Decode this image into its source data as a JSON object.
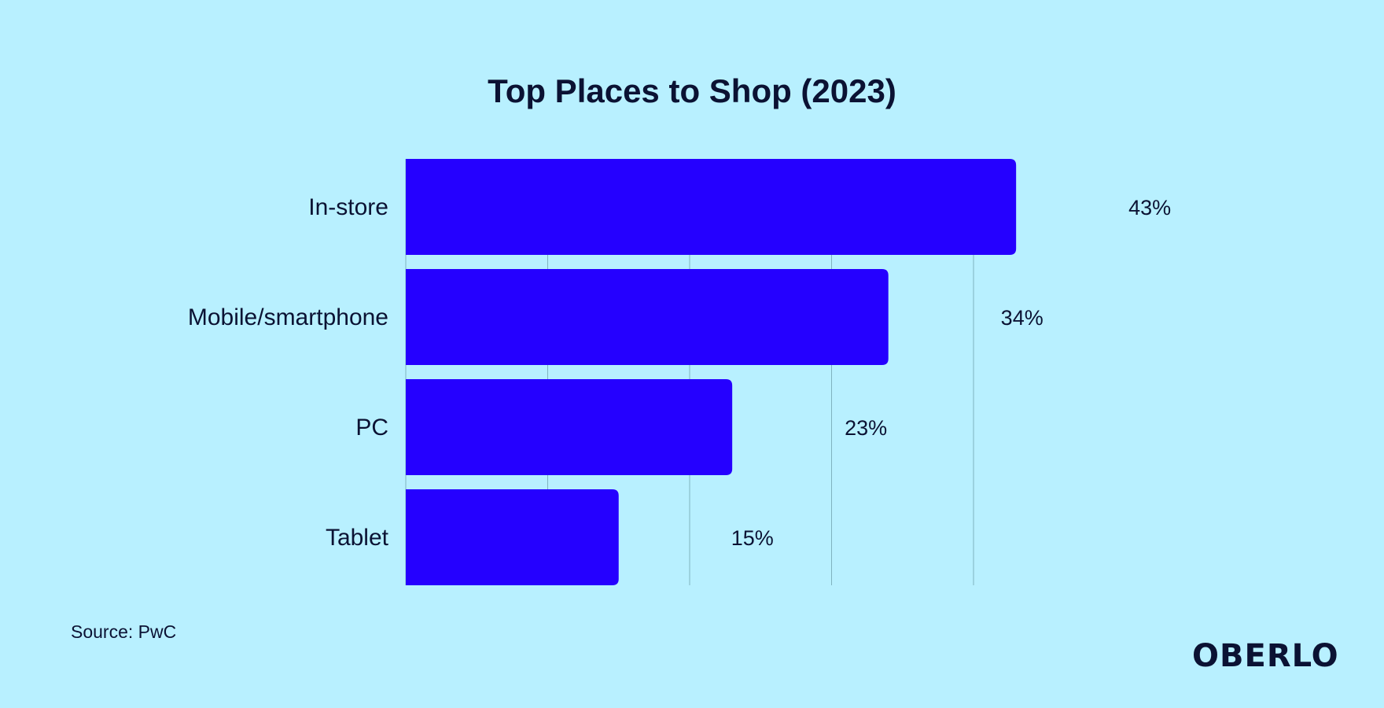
{
  "chart_data": {
    "type": "bar",
    "orientation": "horizontal",
    "title": "Top Places to Shop (2023)",
    "categories": [
      "In-store",
      "Mobile/smartphone",
      "PC",
      "Tablet"
    ],
    "values": [
      43,
      34,
      23,
      15
    ],
    "value_labels": [
      "43%",
      "34%",
      "23%",
      "15%"
    ],
    "xlim": [
      0,
      50
    ],
    "grid": true,
    "bar_color": "#2500ff",
    "gridline_color": "#7fb3bf"
  },
  "source": "Source: PwC",
  "brand": "OBERLO"
}
